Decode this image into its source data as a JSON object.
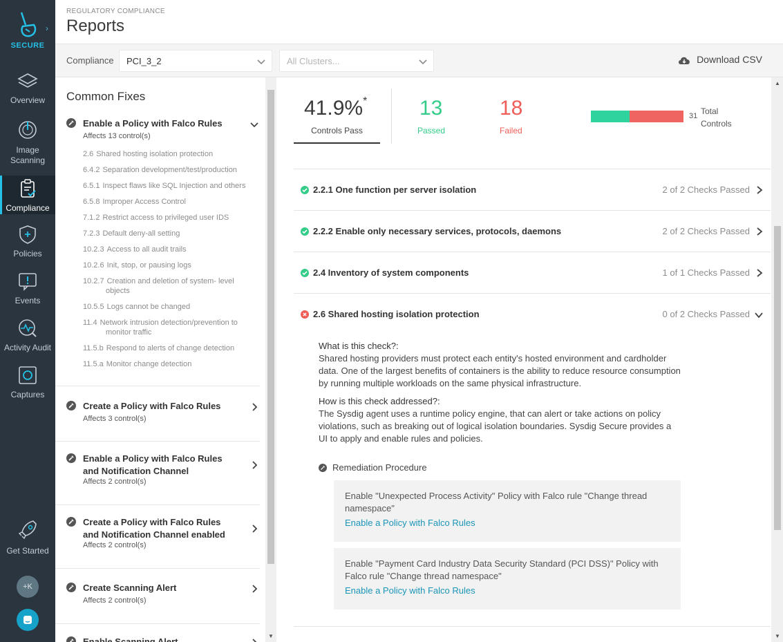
{
  "nav": {
    "brand": "SECURE",
    "items": [
      {
        "label": "Overview",
        "icon": "layers-icon"
      },
      {
        "label": "Image Scanning",
        "icon": "scan-icon"
      },
      {
        "label": "Compliance",
        "icon": "clipboard-check-icon"
      },
      {
        "label": "Policies",
        "icon": "shield-plus-icon"
      },
      {
        "label": "Events",
        "icon": "alert-chat-icon"
      },
      {
        "label": "Activity Audit",
        "icon": "activity-icon"
      },
      {
        "label": "Captures",
        "icon": "capture-icon"
      },
      {
        "label": "Get Started",
        "icon": "rocket-icon"
      }
    ],
    "active": "Compliance",
    "avatar": "+K"
  },
  "header": {
    "breadcrumb": "REGULATORY COMPLIANCE",
    "title": "Reports"
  },
  "toolbar": {
    "compliance_label": "Compliance",
    "compliance_value": "PCI_3_2",
    "clusters_placeholder": "All Clusters...",
    "download_label": "Download CSV"
  },
  "fixes": {
    "heading": "Common Fixes",
    "items": [
      {
        "title": "Enable a Policy with Falco Rules",
        "affects": "Affects 13 control(s)",
        "expanded": true
      },
      {
        "title": "Create a Policy with Falco Rules",
        "affects": "Affects 3 control(s)"
      },
      {
        "title": "Enable a Policy with Falco Rules and Notification Channel",
        "affects": "Affects 2 control(s)"
      },
      {
        "title": "Create a Policy with Falco Rules and Notification Channel enabled",
        "affects": "Affects 2 control(s)"
      },
      {
        "title": "Create Scanning Alert",
        "affects": "Affects 2 control(s)"
      },
      {
        "title": "Enable Scanning Alert",
        "affects": ""
      }
    ],
    "controls": [
      {
        "num": "2.6",
        "text": "Shared hosting isolation protection"
      },
      {
        "num": "6.4.2",
        "text": "Separation development/test/production"
      },
      {
        "num": "6.5.1",
        "text": "Inspect flaws like SQL Injection and others"
      },
      {
        "num": "6.5.8",
        "text": "Improper Access Control"
      },
      {
        "num": "7.1.2",
        "text": "Restrict access to privileged user IDS"
      },
      {
        "num": "7.2.3",
        "text": "Default deny-all setting"
      },
      {
        "num": "10.2.3",
        "text": "Access to all audit trails"
      },
      {
        "num": "10.2.6",
        "text": "Init, stop, or pausing logs"
      },
      {
        "num": "10.2.7",
        "text": "Creation and deletion of system- level objects"
      },
      {
        "num": "10.5.5",
        "text": "Logs cannot be changed"
      },
      {
        "num": "11.4",
        "text": "Network intrusion detection/prevention to monitor traffic"
      },
      {
        "num": "11.5.b",
        "text": "Respond to alerts of change detection"
      },
      {
        "num": "11.5.a",
        "text": "Monitor change detection"
      }
    ]
  },
  "summary": {
    "percent": "41.9%",
    "asterisk": "*",
    "percent_label": "Controls Pass",
    "passed": "13",
    "passed_label": "Passed",
    "failed": "18",
    "failed_label": "Failed",
    "total": "31",
    "total_label": "Total Controls",
    "pass_fraction": 0.419,
    "colors": {
      "passed": "#2ed39d",
      "failed": "#ef6460"
    }
  },
  "controls": [
    {
      "title": "2.2.1 One function per server isolation",
      "checks": "2 of 2 Checks Passed",
      "status": "pass"
    },
    {
      "title": "2.2.2 Enable only necessary services, protocols, daemons",
      "checks": "2 of 2 Checks Passed",
      "status": "pass"
    },
    {
      "title": "2.4 Inventory of system components",
      "checks": "1 of 1 Checks Passed",
      "status": "pass"
    },
    {
      "title": "2.6 Shared hosting isolation protection",
      "checks": "0 of 2 Checks Passed",
      "status": "fail",
      "expanded": true
    }
  ],
  "detail": {
    "what_q": "What is this check?:",
    "what_a": "Shared hosting providers must protect each entity's hosted environment and cardholder data. One of the largest benefits of containers is the ability to reduce resource consumption by running multiple workloads on the same physical infrastructure.",
    "how_q": "How is this check addressed?:",
    "how_a": "The Sysdig agent uses a runtime policy engine, that can alert or take actions on policy violations, such as breaking out of logical isolation boundaries. Sysdig Secure provides a UI to apply and enable rules and policies.",
    "remediation_heading": "Remediation Procedure",
    "remediations": [
      {
        "text": "Enable \"Unexpected Process Activity\" Policy with Falco rule \"Change thread namespace\"",
        "link": "Enable a Policy with Falco Rules"
      },
      {
        "text": "Enable \"Payment Card Industry Data Security Standard (PCI DSS)\" Policy with Falco rule \"Change thread namespace\"",
        "link": "Enable a Policy with Falco Rules"
      }
    ]
  }
}
